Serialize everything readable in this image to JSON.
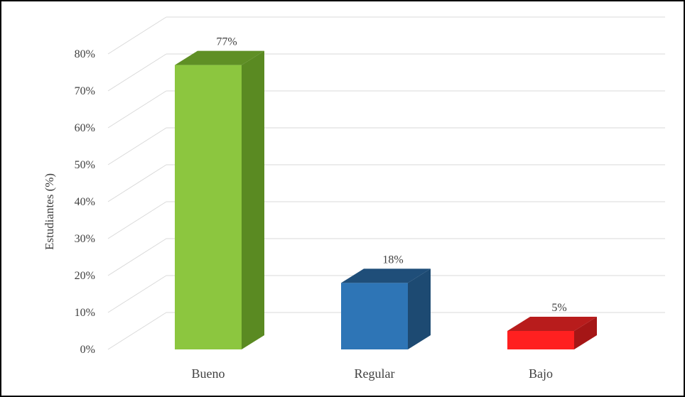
{
  "chart_data": {
    "type": "bar",
    "style": "3d-column",
    "title": "",
    "xlabel": "",
    "ylabel": "Estudiantes (%)",
    "ylim": [
      0,
      80
    ],
    "y_ticks": [
      "0%",
      "10%",
      "20%",
      "30%",
      "40%",
      "50%",
      "60%",
      "70%",
      "80%"
    ],
    "categories": [
      "Bueno",
      "Regular",
      "Bajo"
    ],
    "values": [
      77,
      18,
      5
    ],
    "data_labels": [
      "77%",
      "18%",
      "5%"
    ],
    "colors": [
      {
        "front": "#8cc63f",
        "top": "#5f8f25",
        "side": "#5a8a22"
      },
      {
        "front": "#2e75b6",
        "top": "#1f4e79",
        "side": "#1d4a72"
      },
      {
        "front": "#ff2020",
        "top": "#b81c1c",
        "side": "#a51616"
      }
    ],
    "grid": true,
    "legend": "none"
  }
}
